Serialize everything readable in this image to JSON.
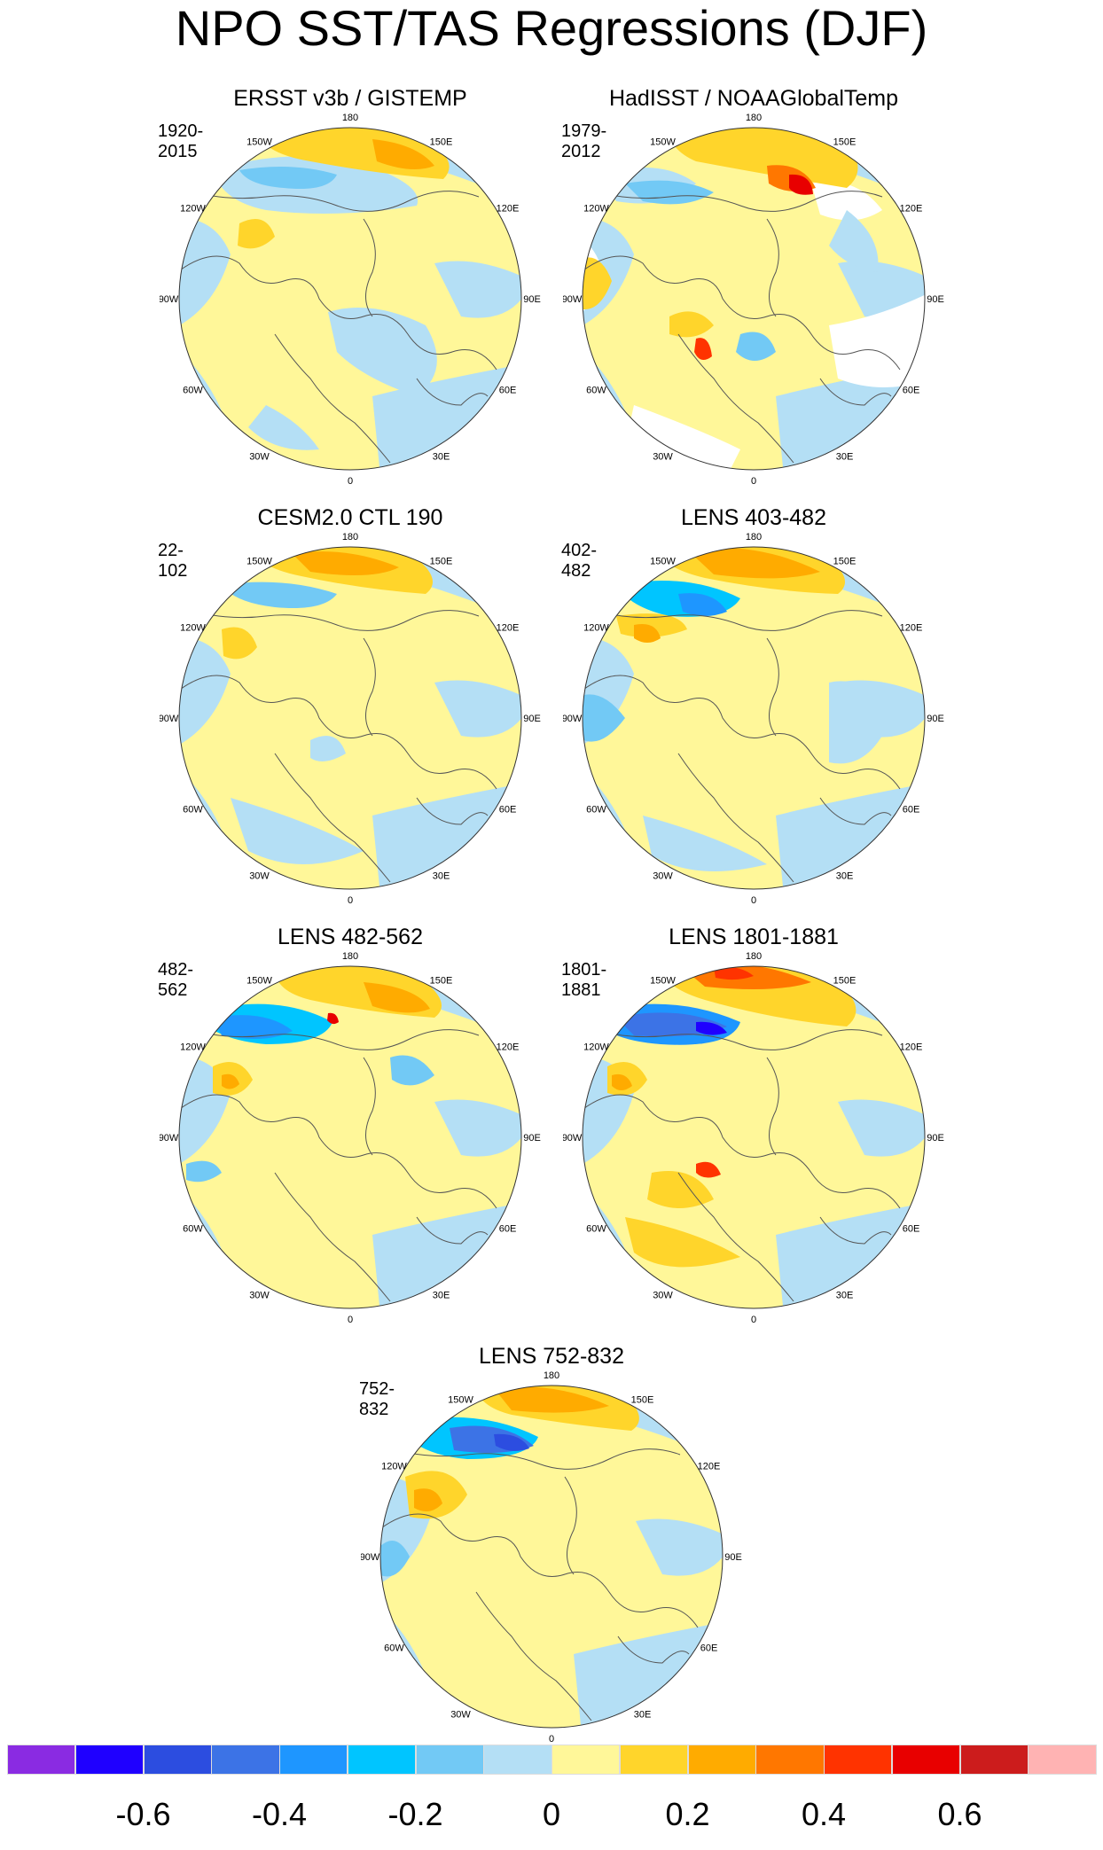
{
  "title": "NPO SST/TAS Regressions (DJF)",
  "longitude_labels": [
    "180",
    "150E",
    "120E",
    "90E",
    "60E",
    "30E",
    "0",
    "30W",
    "60W",
    "90W",
    "120W",
    "150W"
  ],
  "panels": [
    {
      "title": "ERSST v3b / GISTEMP",
      "period": "1920-2015"
    },
    {
      "title": "HadISST / NOAAGlobalTemp",
      "period": "1979-2012"
    },
    {
      "title": "CESM2.0 CTL 190",
      "period": "22-102"
    },
    {
      "title": "LENS 403-482",
      "period": "402-482"
    },
    {
      "title": "LENS 482-562",
      "period": "482-562"
    },
    {
      "title": "LENS 1801-1881",
      "period": "1801-1881"
    },
    {
      "title": "LENS 752-832",
      "period": "752-832"
    }
  ],
  "colorbar": {
    "colors": [
      "#8a2be2",
      "#1f00ff",
      "#2c4de0",
      "#3c73e6",
      "#1e96ff",
      "#00c5ff",
      "#72c9f5",
      "#b4dff5",
      "#fff799",
      "#ffd52b",
      "#ffab00",
      "#ff7700",
      "#ff3300",
      "#e80000",
      "#cc1c1c",
      "#ffb3b3"
    ],
    "labels": [
      "-0.6",
      "-0.4",
      "-0.2",
      "0",
      "0.2",
      "0.4",
      "0.6"
    ]
  }
}
